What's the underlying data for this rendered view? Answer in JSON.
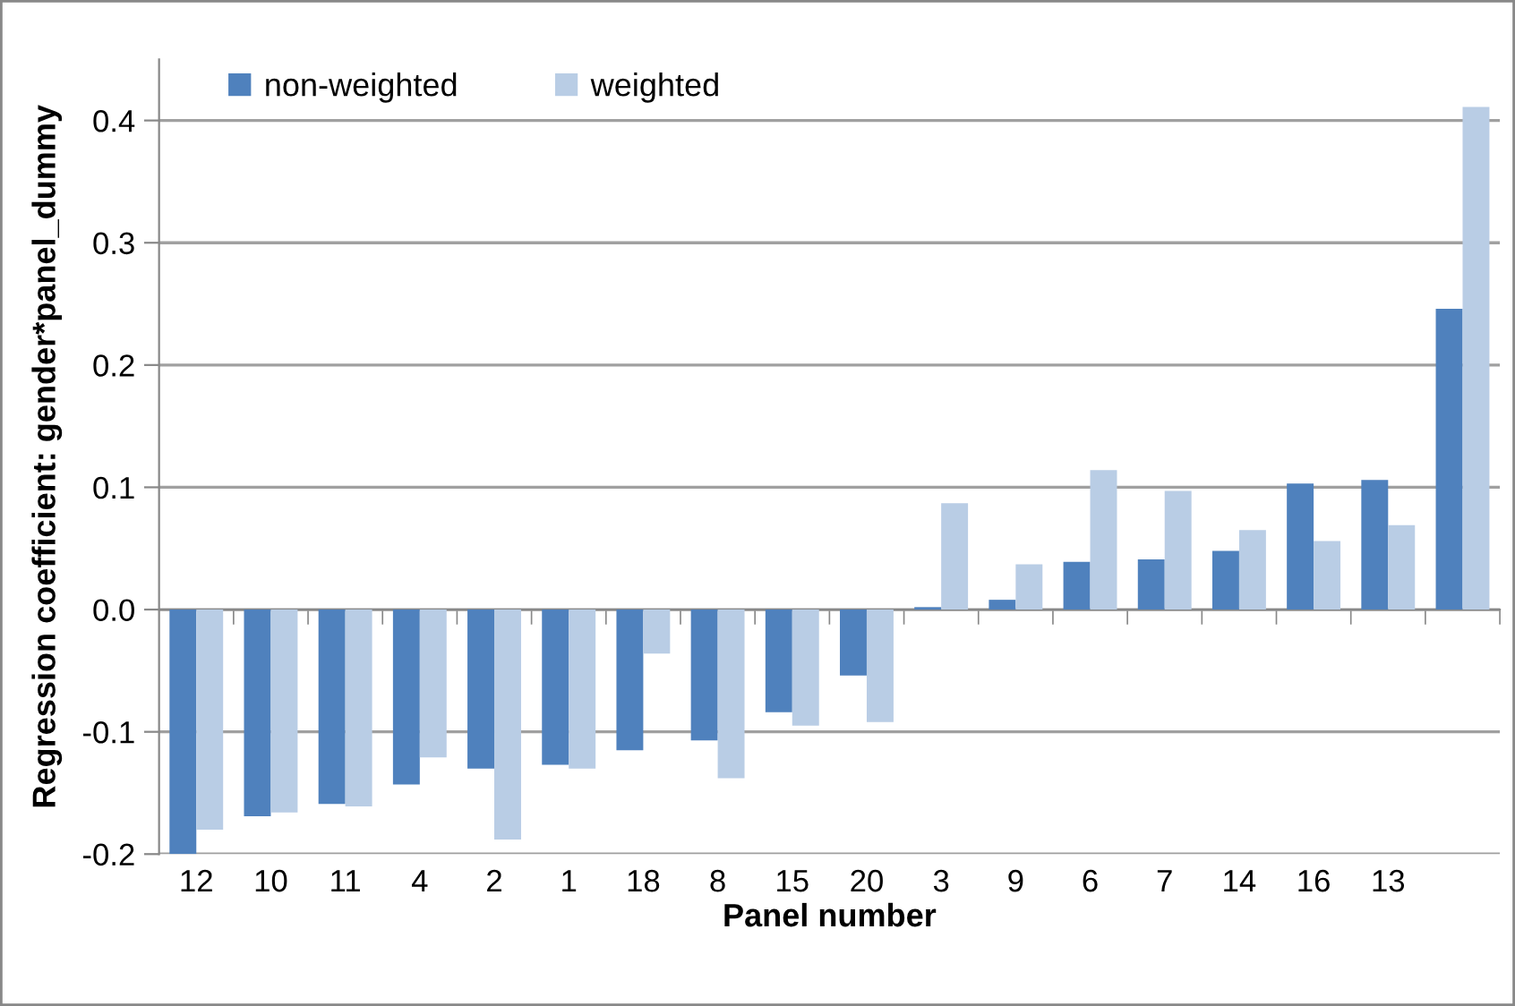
{
  "chart_data": {
    "type": "bar",
    "xlabel": "Panel number",
    "ylabel": "Regression coefficient: gender*panel_dummy",
    "categories": [
      "12",
      "10",
      "11",
      "4",
      "2",
      "1",
      "18",
      "8",
      "15",
      "20",
      "3",
      "9",
      "6",
      "7",
      "14",
      "16",
      "13",
      null
    ],
    "series": [
      {
        "name": "non-weighted",
        "color": "#4f81bd",
        "values": [
          -0.2,
          -0.169,
          -0.159,
          -0.143,
          -0.13,
          -0.127,
          -0.115,
          -0.107,
          -0.084,
          -0.054,
          0.002,
          0.008,
          0.039,
          0.041,
          0.048,
          0.103,
          0.106,
          0.246
        ]
      },
      {
        "name": "weighted",
        "color": "#b9cde5",
        "values": [
          -0.18,
          -0.166,
          -0.161,
          -0.121,
          -0.188,
          -0.13,
          -0.036,
          -0.138,
          -0.095,
          -0.092,
          0.087,
          0.037,
          0.114,
          0.097,
          0.065,
          0.056,
          0.069,
          0.411
        ]
      }
    ],
    "ylim": [
      -0.2,
      0.45
    ],
    "yticks": [
      -0.2,
      -0.1,
      {
        "value": 0,
        "label": "0.0"
      },
      0.1,
      0.2,
      0.3,
      0.4
    ],
    "grid": "y",
    "legend": "top left"
  }
}
